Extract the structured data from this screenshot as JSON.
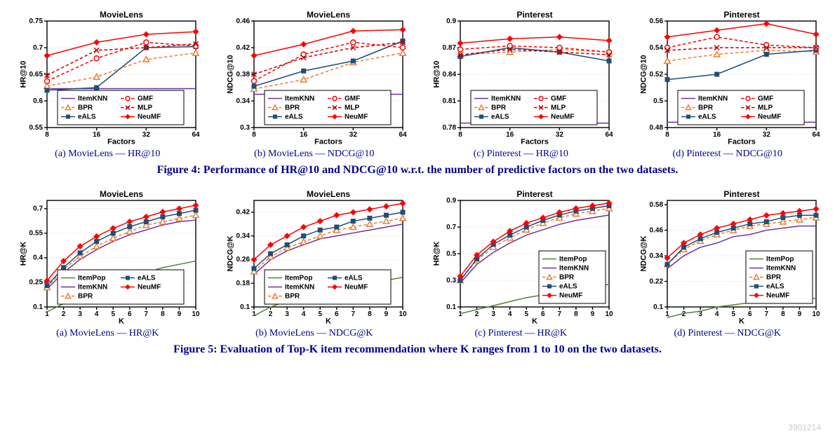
{
  "colors": {
    "axis": "#000000",
    "grid": "#bfbfbf",
    "title": "#000000",
    "text": "#00008b",
    "background": "#ffffff",
    "ItemKNN": "#7030a0",
    "BPR": "#ed7d31",
    "eALS": "#1f4e79",
    "GMF": "#ff0000",
    "MLP": "#c00000",
    "NeuMF": "#ff0000",
    "ItemPop": "#548235"
  },
  "styles": {
    "ItemKNN": {
      "dash": [],
      "marker": "none"
    },
    "BPR": {
      "dash": [
        6,
        4
      ],
      "marker": "triangle"
    },
    "eALS": {
      "dash": [],
      "marker": "square-filled"
    },
    "GMF": {
      "dash": [
        6,
        4
      ],
      "marker": "circle"
    },
    "MLP": {
      "dash": [
        6,
        4
      ],
      "marker": "x"
    },
    "NeuMF": {
      "dash": [],
      "marker": "diamond-filled"
    },
    "ItemPop": {
      "dash": [],
      "marker": "none"
    }
  },
  "legend": {
    "fontsize": 10,
    "fontfamily": "Arial",
    "cols": 2,
    "border": "#000000"
  },
  "axis": {
    "title_fontsize": 12,
    "label_fontsize": 11,
    "tick_fontsize": 10,
    "fontfamily": "Arial",
    "line_width": 1.4
  },
  "fig4": {
    "caption_label": "Figure 4:",
    "caption_text": "Performance of HR@10 and NDCG@10 w.r.t. the number of predictive factors on the two datasets.",
    "panels": [
      {
        "id": "4a",
        "title": "MovieLens",
        "subcaption": "(a) MovieLens — HR@10",
        "xlabel": "Factors",
        "ylabel": "HR@10",
        "x": [
          8,
          16,
          32,
          64
        ],
        "xticks": [
          8,
          16,
          32,
          64
        ],
        "xscale": "log",
        "ylim": [
          0.55,
          0.75
        ],
        "yticks": [
          0.55,
          0.6,
          0.65,
          0.7,
          0.75
        ],
        "legend_pos": "lower-inside",
        "series": [
          {
            "name": "ItemKNN",
            "y": [
              0.623,
              0.623,
              0.623,
              0.623
            ]
          },
          {
            "name": "BPR",
            "y": [
              0.628,
              0.645,
              0.678,
              0.69
            ]
          },
          {
            "name": "eALS",
            "y": [
              0.62,
              0.625,
              0.7,
              0.702
            ]
          },
          {
            "name": "GMF",
            "y": [
              0.637,
              0.68,
              0.71,
              0.703
            ]
          },
          {
            "name": "MLP",
            "y": [
              0.648,
              0.695,
              0.7,
              0.707
            ]
          },
          {
            "name": "NeuMF",
            "y": [
              0.685,
              0.71,
              0.725,
              0.73
            ]
          }
        ]
      },
      {
        "id": "4b",
        "title": "MovieLens",
        "subcaption": "(b) MovieLens — NDCG@10",
        "xlabel": "Factors",
        "ylabel": "NDCG@10",
        "x": [
          8,
          16,
          32,
          64
        ],
        "xticks": [
          8,
          16,
          32,
          64
        ],
        "xscale": "log",
        "ylim": [
          0.3,
          0.46
        ],
        "yticks": [
          0.3,
          0.34,
          0.38,
          0.42,
          0.46
        ],
        "legend_pos": "lower-inside",
        "series": [
          {
            "name": "ItemKNN",
            "y": [
              0.35,
              0.35,
              0.35,
              0.35
            ]
          },
          {
            "name": "BPR",
            "y": [
              0.358,
              0.372,
              0.398,
              0.412
            ]
          },
          {
            "name": "eALS",
            "y": [
              0.362,
              0.385,
              0.4,
              0.43
            ]
          },
          {
            "name": "GMF",
            "y": [
              0.37,
              0.41,
              0.428,
              0.42
            ]
          },
          {
            "name": "MLP",
            "y": [
              0.38,
              0.405,
              0.42,
              0.428
            ]
          },
          {
            "name": "NeuMF",
            "y": [
              0.408,
              0.425,
              0.445,
              0.447
            ]
          }
        ]
      },
      {
        "id": "4c",
        "title": "Pinterest",
        "subcaption": "(c) Pinterest — HR@10",
        "xlabel": "Factors",
        "ylabel": "HR@10",
        "x": [
          8,
          16,
          32,
          64
        ],
        "xticks": [
          8,
          16,
          32,
          64
        ],
        "xscale": "log",
        "ylim": [
          0.78,
          0.9
        ],
        "yticks": [
          0.78,
          0.81,
          0.84,
          0.87,
          0.9
        ],
        "legend_pos": "lower-inside",
        "series": [
          {
            "name": "ItemKNN",
            "y": [
              0.785,
              0.785,
              0.785,
              0.785
            ]
          },
          {
            "name": "BPR",
            "y": [
              0.862,
              0.865,
              0.868,
              0.865
            ]
          },
          {
            "name": "eALS",
            "y": [
              0.86,
              0.87,
              0.865,
              0.855
            ]
          },
          {
            "name": "GMF",
            "y": [
              0.868,
              0.872,
              0.87,
              0.865
            ]
          },
          {
            "name": "MLP",
            "y": [
              0.862,
              0.868,
              0.865,
              0.862
            ]
          },
          {
            "name": "NeuMF",
            "y": [
              0.875,
              0.88,
              0.882,
              0.878
            ]
          }
        ]
      },
      {
        "id": "4d",
        "title": "Pinterest",
        "subcaption": "(d) Pinterest — NDCG@10",
        "xlabel": "Factors",
        "ylabel": "NDCG@10",
        "x": [
          8,
          16,
          32,
          64
        ],
        "xticks": [
          8,
          16,
          32,
          64
        ],
        "xscale": "log",
        "ylim": [
          0.48,
          0.56
        ],
        "yticks": [
          0.48,
          0.5,
          0.52,
          0.54,
          0.56
        ],
        "legend_pos": "lower-inside",
        "series": [
          {
            "name": "ItemKNN",
            "y": [
              0.484,
              0.484,
              0.484,
              0.484
            ]
          },
          {
            "name": "BPR",
            "y": [
              0.53,
              0.535,
              0.538,
              0.537
            ]
          },
          {
            "name": "eALS",
            "y": [
              0.516,
              0.52,
              0.535,
              0.538
            ]
          },
          {
            "name": "GMF",
            "y": [
              0.54,
              0.548,
              0.542,
              0.54
            ]
          },
          {
            "name": "MLP",
            "y": [
              0.538,
              0.54,
              0.54,
              0.54
            ]
          },
          {
            "name": "NeuMF",
            "y": [
              0.548,
              0.553,
              0.558,
              0.55
            ]
          }
        ]
      }
    ]
  },
  "fig5": {
    "caption_label": "Figure 5:",
    "caption_text": "Evaluation of Top-K item recommendation where K ranges from 1 to 10 on the two datasets.",
    "panels": [
      {
        "id": "5a",
        "title": "MovieLens",
        "subcaption": "(a) MovieLens — HR@K",
        "xlabel": "K",
        "ylabel": "HR@K",
        "x": [
          1,
          2,
          3,
          4,
          5,
          6,
          7,
          8,
          9,
          10
        ],
        "xticks": [
          1,
          2,
          3,
          4,
          5,
          6,
          7,
          8,
          9,
          10
        ],
        "ylim": [
          0.1,
          0.75
        ],
        "yticks": [
          0.1,
          0.25,
          0.4,
          0.55,
          0.7
        ],
        "legend_pos": "lower-inside",
        "legend_cols": 2,
        "series": [
          {
            "name": "ItemPop",
            "y": [
              0.07,
              0.12,
              0.17,
              0.21,
              0.25,
              0.28,
              0.31,
              0.34,
              0.36,
              0.38
            ]
          },
          {
            "name": "ItemKNN",
            "y": [
              0.21,
              0.31,
              0.39,
              0.45,
              0.5,
              0.54,
              0.57,
              0.6,
              0.62,
              0.63
            ]
          },
          {
            "name": "BPR",
            "y": [
              0.22,
              0.33,
              0.41,
              0.47,
              0.52,
              0.56,
              0.6,
              0.62,
              0.64,
              0.66
            ]
          },
          {
            "name": "eALS",
            "y": [
              0.23,
              0.34,
              0.43,
              0.5,
              0.55,
              0.59,
              0.62,
              0.65,
              0.67,
              0.69
            ]
          },
          {
            "name": "NeuMF",
            "y": [
              0.26,
              0.38,
              0.47,
              0.53,
              0.58,
              0.62,
              0.65,
              0.68,
              0.7,
              0.72
            ]
          }
        ]
      },
      {
        "id": "5b",
        "title": "MovieLens",
        "subcaption": "(b) MovieLens — NDCG@K",
        "xlabel": "K",
        "ylabel": "NDCG@K",
        "x": [
          1,
          2,
          3,
          4,
          5,
          6,
          7,
          8,
          9,
          10
        ],
        "xticks": [
          1,
          2,
          3,
          4,
          5,
          6,
          7,
          8,
          9,
          10
        ],
        "ylim": [
          0.1,
          0.46
        ],
        "yticks": [
          0.1,
          0.18,
          0.26,
          0.34,
          0.42
        ],
        "legend_pos": "lower-inside",
        "legend_cols": 2,
        "series": [
          {
            "name": "ItemPop",
            "y": [
              0.07,
              0.1,
              0.12,
              0.14,
              0.15,
              0.16,
              0.17,
              0.18,
              0.19,
              0.2
            ]
          },
          {
            "name": "ItemKNN",
            "y": [
              0.21,
              0.26,
              0.29,
              0.31,
              0.33,
              0.34,
              0.35,
              0.36,
              0.37,
              0.38
            ]
          },
          {
            "name": "BPR",
            "y": [
              0.22,
              0.27,
              0.3,
              0.32,
              0.34,
              0.36,
              0.37,
              0.38,
              0.39,
              0.4
            ]
          },
          {
            "name": "eALS",
            "y": [
              0.23,
              0.28,
              0.31,
              0.34,
              0.36,
              0.37,
              0.39,
              0.4,
              0.41,
              0.42
            ]
          },
          {
            "name": "NeuMF",
            "y": [
              0.26,
              0.31,
              0.34,
              0.37,
              0.39,
              0.41,
              0.42,
              0.43,
              0.44,
              0.45
            ]
          }
        ]
      },
      {
        "id": "5c",
        "title": "Pinterest",
        "subcaption": "(c) Pinterest — HR@K",
        "xlabel": "K",
        "ylabel": "HR@K",
        "x": [
          1,
          2,
          3,
          4,
          5,
          6,
          7,
          8,
          9,
          10
        ],
        "xticks": [
          1,
          2,
          3,
          4,
          5,
          6,
          7,
          8,
          9,
          10
        ],
        "ylim": [
          0.1,
          0.9
        ],
        "yticks": [
          0.1,
          0.3,
          0.5,
          0.7,
          0.9
        ],
        "legend_pos": "lower-right",
        "legend_cols": 1,
        "series": [
          {
            "name": "ItemPop",
            "y": [
              0.05,
              0.08,
              0.11,
              0.14,
              0.17,
              0.19,
              0.21,
              0.23,
              0.25,
              0.27
            ]
          },
          {
            "name": "ItemKNN",
            "y": [
              0.28,
              0.42,
              0.51,
              0.58,
              0.64,
              0.68,
              0.72,
              0.75,
              0.77,
              0.79
            ]
          },
          {
            "name": "BPR",
            "y": [
              0.3,
              0.45,
              0.55,
              0.62,
              0.68,
              0.73,
              0.77,
              0.8,
              0.82,
              0.84
            ]
          },
          {
            "name": "eALS",
            "y": [
              0.3,
              0.46,
              0.57,
              0.64,
              0.7,
              0.75,
              0.79,
              0.82,
              0.84,
              0.86
            ]
          },
          {
            "name": "NeuMF",
            "y": [
              0.33,
              0.49,
              0.59,
              0.67,
              0.73,
              0.77,
              0.81,
              0.84,
              0.86,
              0.88
            ]
          }
        ]
      },
      {
        "id": "5d",
        "title": "Pinterest",
        "subcaption": "(d) Pinterest — NDCG@K",
        "xlabel": "K",
        "ylabel": "NDCG@K",
        "x": [
          1,
          2,
          3,
          4,
          5,
          6,
          7,
          8,
          9,
          10
        ],
        "xticks": [
          1,
          2,
          3,
          4,
          5,
          6,
          7,
          8,
          9,
          10
        ],
        "ylim": [
          0.1,
          0.6
        ],
        "yticks": [
          0.1,
          0.22,
          0.34,
          0.46,
          0.58
        ],
        "legend_pos": "lower-right",
        "legend_cols": 1,
        "series": [
          {
            "name": "ItemPop",
            "y": [
              0.05,
              0.07,
              0.08,
              0.1,
              0.11,
              0.12,
              0.12,
              0.13,
              0.14,
              0.14
            ]
          },
          {
            "name": "ItemKNN",
            "y": [
              0.28,
              0.34,
              0.38,
              0.4,
              0.43,
              0.44,
              0.46,
              0.47,
              0.48,
              0.48
            ]
          },
          {
            "name": "BPR",
            "y": [
              0.3,
              0.37,
              0.41,
              0.44,
              0.46,
              0.48,
              0.49,
              0.5,
              0.51,
              0.52
            ]
          },
          {
            "name": "eALS",
            "y": [
              0.3,
              0.38,
              0.42,
              0.45,
              0.47,
              0.49,
              0.5,
              0.52,
              0.53,
              0.53
            ]
          },
          {
            "name": "NeuMF",
            "y": [
              0.33,
              0.4,
              0.44,
              0.47,
              0.49,
              0.51,
              0.53,
              0.54,
              0.55,
              0.56
            ]
          }
        ]
      }
    ]
  },
  "watermark": "3901214"
}
